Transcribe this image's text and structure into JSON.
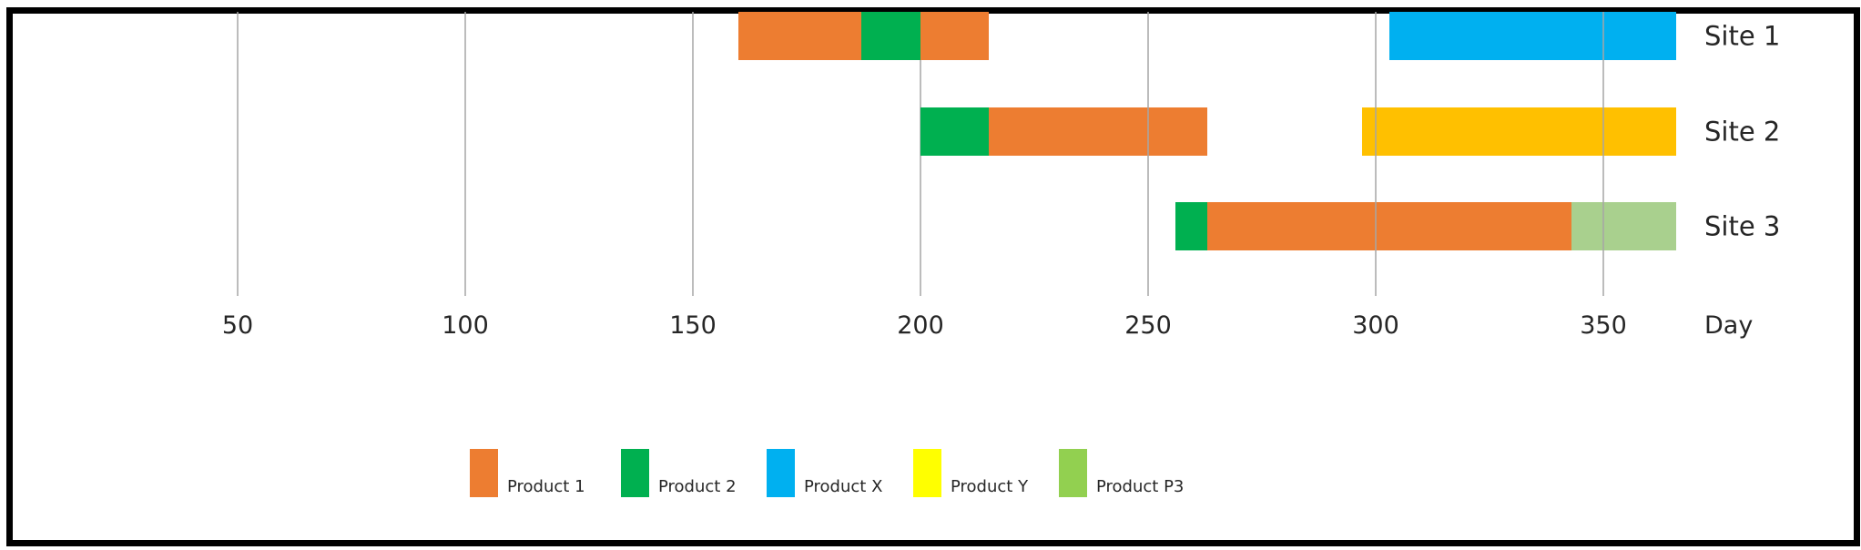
{
  "chart_data": {
    "type": "bar",
    "orientation": "horizontal-stacked-gantt",
    "title": "",
    "xlabel": "Day",
    "ylabel": "",
    "x_ticks": [
      50,
      100,
      150,
      200,
      250,
      300,
      350
    ],
    "xlim": [
      0,
      366
    ],
    "grid": true,
    "legend_position": "bottom",
    "categories": [
      "Site 1",
      "Site 2",
      "Site 3"
    ],
    "products": [
      {
        "name": "Product 1",
        "color": "#ED7D31"
      },
      {
        "name": "Product 2",
        "color": "#00B050"
      },
      {
        "name": "Product X",
        "color": "#00B0F0"
      },
      {
        "name": "Product Y",
        "color": "#FFFF00"
      },
      {
        "name": "Product P3",
        "color": "#92D050"
      }
    ],
    "segments": [
      {
        "site": "Site 1",
        "start": 160,
        "end": 187,
        "color": "#ED7D31"
      },
      {
        "site": "Site 1",
        "start": 187,
        "end": 200,
        "color": "#00B050"
      },
      {
        "site": "Site 1",
        "start": 200,
        "end": 215,
        "color": "#ED7D31"
      },
      {
        "site": "Site 1",
        "start": 303,
        "end": 366,
        "color": "#00B0F0"
      },
      {
        "site": "Site 2",
        "start": 200,
        "end": 215,
        "color": "#00B050"
      },
      {
        "site": "Site 2",
        "start": 215,
        "end": 263,
        "color": "#ED7D31"
      },
      {
        "site": "Site 2",
        "start": 297,
        "end": 366,
        "color": "#FFC000"
      },
      {
        "site": "Site 3",
        "start": 256,
        "end": 263,
        "color": "#00B050"
      },
      {
        "site": "Site 3",
        "start": 263,
        "end": 343,
        "color": "#ED7D31"
      },
      {
        "site": "Site 3",
        "start": 343,
        "end": 366,
        "color": "#A9D08E"
      }
    ]
  }
}
